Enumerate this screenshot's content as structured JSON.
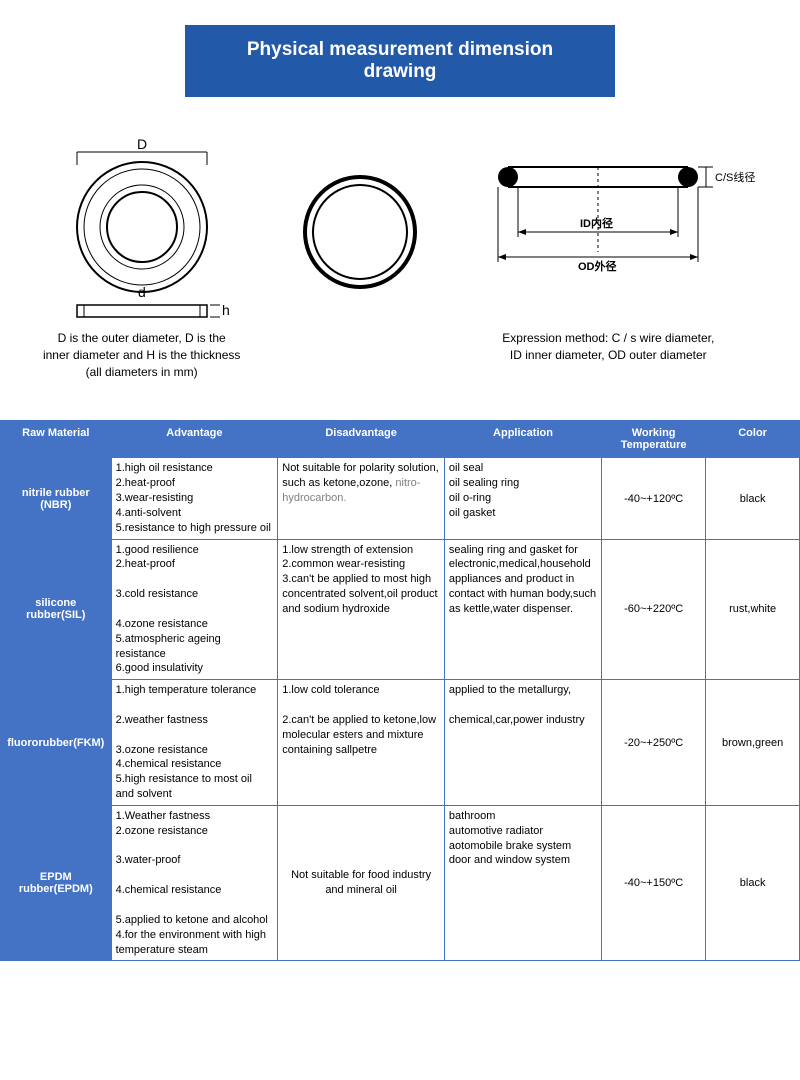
{
  "title": "Physical measurement dimension drawing",
  "diagram_left": {
    "label_D": "D",
    "label_d": "d",
    "label_h": "h",
    "caption_line1": "D is the outer diameter, D is the",
    "caption_line2": "inner diameter and H is the thickness",
    "caption_line3": "(all diameters in mm)"
  },
  "diagram_right": {
    "label_cs": "C/S线径",
    "label_id": "ID内径",
    "label_od": "OD外径",
    "caption_line1": "Expression method: C / s wire diameter,",
    "caption_line2": "ID inner diameter, OD outer diameter"
  },
  "table": {
    "headers": [
      "Raw Material",
      "Advantage",
      "Disadvantage",
      "Application",
      "Working Temperature",
      "Color"
    ],
    "header_bg": "#4472c4",
    "border_color": "#4472c4",
    "rows": [
      {
        "material": "nitrile rubber (NBR)",
        "advantage": "1.high oil resistance\n2.heat-proof\n3.wear-resisting\n4.anti-solvent\n5.resistance to high pressure oil",
        "disadvantage_pre": "Not suitable for polarity solution, such as ketone,ozone,",
        "disadvantage_muted": "nitro-hydrocarbon.",
        "application": "oil seal\noil sealing ring\noil o-ring\noil gasket",
        "temp": "-40~+120ºC",
        "color": "black"
      },
      {
        "material": "silicone rubber(SIL)",
        "advantage": "1.good resilience\n2.heat-proof\n\n3.cold resistance\n\n4.ozone resistance\n5.atmospheric ageing resistance\n6.good insulativity",
        "disadvantage": "1.low strength of extension\n2.common wear-resisting\n3.can't be applied to most high concentrated solvent,oil product and sodium hydroxide",
        "application": "sealing ring and gasket for electronic,medical,household appliances and product in contact with human body,such as kettle,water dispenser.",
        "temp": "-60~+220ºC",
        "color": "rust,white"
      },
      {
        "material": "fluororubber(FKM)",
        "advantage": "1.high temperature tolerance\n\n2.weather fastness\n\n3.ozone resistance\n4.chemical resistance\n5.high resistance to most oil and solvent",
        "disadvantage": "1.low cold tolerance\n\n2.can't be applied to ketone,low molecular esters and mixture containing sallpetre",
        "application": "applied to the metallurgy,\n\nchemical,car,power industry",
        "temp": "-20~+250ºC",
        "color": "brown,green"
      },
      {
        "material": "EPDM rubber(EPDM)",
        "advantage": "1.Weather fastness\n2.ozone resistance\n\n3.water-proof\n\n4.chemical resistance\n\n5.applied to ketone and alcohol\n4.for the environment with high temperature steam",
        "disadvantage": "Not suitable for food industry and mineral oil",
        "application": "bathroom\nautomotive radiator\naotomobile brake system\ndoor and window system",
        "temp": "-40~+150ºC",
        "color": "black"
      }
    ]
  }
}
